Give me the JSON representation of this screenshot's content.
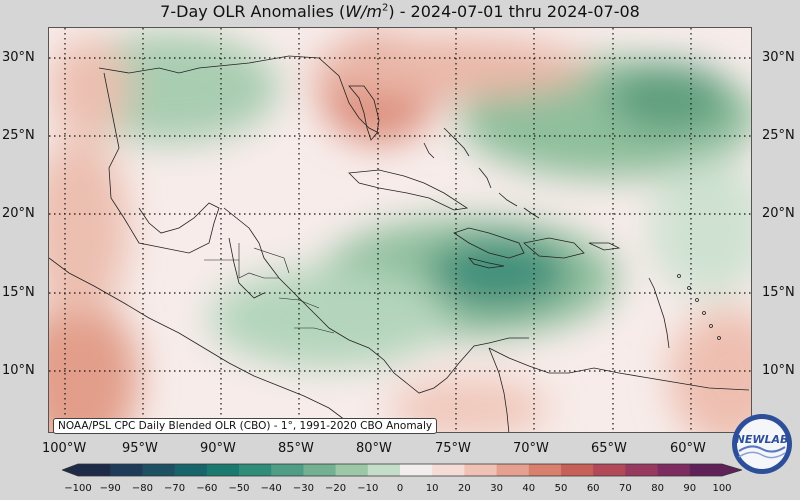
{
  "title": {
    "prefix": "7-Day OLR Anomalies (",
    "unit_base": "W/m",
    "unit_exp": "2",
    "suffix": ") - 2024-07-01 thru 2024-07-08"
  },
  "map": {
    "lat_labels": [
      "30°N",
      "25°N",
      "20°N",
      "15°N",
      "10°N"
    ],
    "lon_labels": [
      "100°W",
      "95°W",
      "90°W",
      "85°W",
      "80°W",
      "75°W",
      "70°W",
      "65°W",
      "60°W"
    ],
    "attribution": "NOAA/PSL CPC Daily Blended OLR (CBO) - 1°, 1991-2020 CBO Anomaly",
    "logo_text": "NEWLAB",
    "bounds": {
      "lon_min": -102.5,
      "lon_max": -57.5,
      "lat_min": 6,
      "lat_max": 32
    },
    "anomaly_regions": [
      {
        "lon": -92,
        "lat": 28,
        "value": -30
      },
      {
        "lon": -62,
        "lat": 27,
        "value": -50
      },
      {
        "lon": -72,
        "lat": 16,
        "value": -70
      },
      {
        "lon": -78,
        "lat": 14,
        "value": -40
      },
      {
        "lon": -84,
        "lat": 12,
        "value": -30
      },
      {
        "lon": -81,
        "lat": 29,
        "value": 40
      },
      {
        "lon": -100,
        "lat": 10,
        "value": 30
      },
      {
        "lon": -100,
        "lat": 22,
        "value": 20
      },
      {
        "lon": -60,
        "lat": 10,
        "value": 20
      }
    ]
  },
  "colorbar": {
    "ticks": [
      "−100",
      "−90",
      "−80",
      "−70",
      "−60",
      "−50",
      "−40",
      "−30",
      "−20",
      "−10",
      "0",
      "10",
      "20",
      "30",
      "40",
      "50",
      "60",
      "70",
      "80",
      "90",
      "100"
    ],
    "colors": [
      "#1d2b49",
      "#1f3b5a",
      "#1c5062",
      "#17656a",
      "#1a7a70",
      "#2f8d7a",
      "#4e9d84",
      "#74b192",
      "#9dc8a7",
      "#c4dec9",
      "#f3eeee",
      "#f5dcd6",
      "#efc2b5",
      "#e5a090",
      "#d97f6d",
      "#c8605a",
      "#b24858",
      "#98395f",
      "#7d2c60",
      "#5f2158"
    ]
  }
}
